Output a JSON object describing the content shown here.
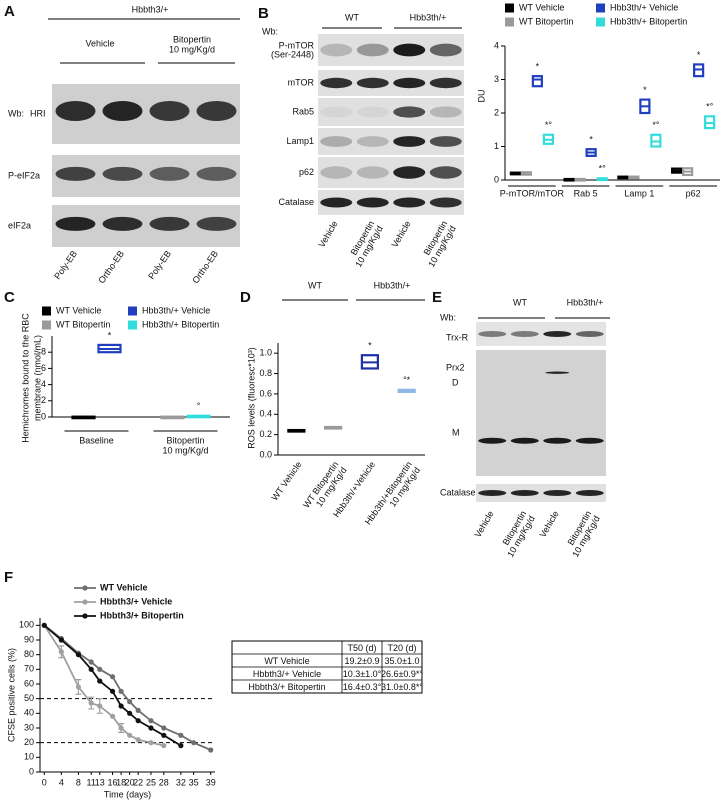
{
  "panel_labels": [
    "A",
    "B",
    "C",
    "D",
    "E",
    "F"
  ],
  "blot_a": {
    "header": "Hbbth3/+",
    "groups": [
      [
        "Vehicle"
      ],
      [
        "Bitopertin",
        "10 mg/Kg/d"
      ]
    ],
    "wb": "Wb:",
    "rows": [
      "HRI",
      "P-eIF2a",
      "eIF2a"
    ],
    "lanes": [
      "Poly-EB",
      "Ortho-EB",
      "Poly-EB",
      "Ortho-EB"
    ]
  },
  "blot_b": {
    "wb": "Wb:",
    "groups": [
      "WT",
      "Hbb3th/+"
    ],
    "rows": [
      [
        "P-mTOR",
        "(Ser-2448)"
      ],
      [
        "mTOR"
      ],
      [
        "Rab5"
      ],
      [
        "Lamp1"
      ],
      [
        "p62"
      ],
      [
        "Catalase"
      ]
    ],
    "lanes": [
      [
        "Vehicle"
      ],
      [
        "Bitopertin",
        "10 mg/Kg/d"
      ],
      [
        "Vehicle"
      ],
      [
        "Bitopertin",
        "10 mg/Kg/d"
      ]
    ]
  },
  "blot_e": {
    "wb": "Wb:",
    "groups": [
      "WT",
      "Hbb3th/+"
    ],
    "rows": [
      "Trx-R",
      "Prx2",
      "Catalase"
    ],
    "prx2_marks": [
      "D",
      "M"
    ],
    "lanes": [
      [
        "Vehicle"
      ],
      [
        "Bitopertin",
        "10 mg/Kg/d"
      ],
      [
        "Vehicle"
      ],
      [
        "Bitopertin",
        "10 mg/Kg/d"
      ]
    ]
  },
  "chart_data": [
    {
      "type": "box",
      "ylabel": "DU",
      "categories": [
        "P-mTOR/mTOR",
        "Rab 5",
        "Lamp 1",
        "p62"
      ],
      "ylim": [
        0,
        4
      ],
      "yticks": [
        0,
        1,
        2,
        3,
        4
      ],
      "series": [
        {
          "name": "WT Vehicle",
          "color": "#000000",
          "q1": [
            0.17,
            0.01,
            0.06,
            0.22
          ],
          "median": [
            0.2,
            0.02,
            0.08,
            0.28
          ],
          "q3": [
            0.22,
            0.03,
            0.1,
            0.34
          ]
        },
        {
          "name": "WT Bitopertin",
          "color": "#9a9a9a",
          "q1": [
            0.16,
            0.01,
            0.06,
            0.15
          ],
          "median": [
            0.2,
            0.02,
            0.08,
            0.25
          ],
          "q3": [
            0.23,
            0.03,
            0.1,
            0.35
          ]
        },
        {
          "name": "Hbb3th/+ Vehicle",
          "color": "#1f3fbf",
          "q1": [
            2.8,
            0.72,
            2.0,
            3.1
          ],
          "median": [
            3.0,
            0.82,
            2.2,
            3.3
          ],
          "q3": [
            3.1,
            0.92,
            2.4,
            3.45
          ],
          "annotations": [
            "*",
            "*",
            "*",
            "*"
          ]
        },
        {
          "name": "Hbb3th/+ Bitopertin",
          "color": "#33dcdc",
          "q1": [
            1.08,
            0.0,
            1.0,
            1.55
          ],
          "median": [
            1.2,
            0.02,
            1.15,
            1.7
          ],
          "q3": [
            1.35,
            0.05,
            1.35,
            1.9
          ],
          "annotations": [
            "*°",
            "*°",
            "*°",
            "*°"
          ]
        }
      ]
    },
    {
      "type": "box",
      "ylabel": [
        "Hemichromes bound to the RBC",
        "membrane (nmol/mL)"
      ],
      "categories": [
        [
          "Baseline"
        ],
        [
          "Bitopertin",
          "10 mg/Kg/d"
        ]
      ],
      "ylim": [
        0,
        10
      ],
      "yticks": [
        0,
        2,
        4,
        6,
        8
      ],
      "series": [
        {
          "name": "WT Vehicle",
          "color": "#000000",
          "q1": [
            0.0,
            null
          ],
          "median": [
            0.02,
            null
          ],
          "q3": [
            0.04,
            null
          ]
        },
        {
          "name": "WT Bitopertin",
          "color": "#9a9a9a",
          "q1": [
            null,
            0.0
          ],
          "median": [
            null,
            0.02
          ],
          "q3": [
            null,
            0.04
          ]
        },
        {
          "name": "Hbb3th/+ Vehicle",
          "color": "#1f3fbf",
          "q1": [
            8.0,
            null
          ],
          "median": [
            8.4,
            null
          ],
          "q3": [
            8.9,
            null
          ],
          "annotations": [
            "*",
            null
          ]
        },
        {
          "name": "Hbb3th/+ Bitopertin",
          "color": "#33dcdc",
          "q1": [
            null,
            0.05
          ],
          "median": [
            null,
            0.1
          ],
          "q3": [
            null,
            0.15
          ],
          "annotations": [
            null,
            "°"
          ]
        }
      ]
    },
    {
      "type": "box",
      "ylabel": "ROS levels (fluoresc*10³)",
      "headers": [
        "WT",
        "Hbb3th/+"
      ],
      "categories": [
        [
          "WT Vehicle"
        ],
        [
          "WT Bitopertin",
          "10 mg/Kg/d"
        ],
        [
          "Hbb3th/+Vehicle"
        ],
        [
          "Hbb3th/+Bitopertin",
          "10 mg/Kg/d"
        ]
      ],
      "ylim": [
        0,
        1.1
      ],
      "yticks": [
        {
          "value": 0,
          "label": "0.0"
        },
        {
          "value": 0.2,
          "label": "0.2"
        },
        {
          "value": 0.4,
          "label": "0.4"
        },
        {
          "value": 0.6,
          "label": "0.6"
        },
        {
          "value": 0.8,
          "label": "0.8"
        },
        {
          "value": 1,
          "label": "1.0"
        }
      ],
      "series": [
        {
          "colors": [
            "#000000",
            "#9a9a9a",
            "#1f2fa8",
            "#8fb8e8"
          ],
          "q1": [
            0.235,
            0.265,
            0.85,
            0.62
          ],
          "median": [
            0.24,
            0.27,
            0.91,
            0.63
          ],
          "q3": [
            0.245,
            0.275,
            0.98,
            0.64
          ],
          "annotations": [
            null,
            null,
            "*",
            "°*"
          ]
        }
      ]
    },
    {
      "type": "line",
      "ylabel": "CFSE positive cells (%)",
      "xlabel": "Time (days)",
      "x": [
        0,
        4,
        8,
        11,
        13,
        16,
        18,
        20,
        22,
        25,
        28,
        32,
        35,
        39
      ],
      "xlim": [
        -1,
        40
      ],
      "xticks": [
        0,
        4,
        8,
        11,
        13,
        16,
        18,
        20,
        22,
        25,
        28,
        32,
        35,
        39
      ],
      "ylim": [
        0,
        105
      ],
      "yticks": [
        0,
        10,
        20,
        30,
        40,
        50,
        60,
        70,
        80,
        90,
        100
      ],
      "hlines": [
        50,
        20
      ],
      "series": [
        {
          "name": "WT Vehicle",
          "color": "#6e6e6e",
          "values": [
            100,
            91,
            81,
            75,
            70,
            65,
            55,
            48,
            42,
            35,
            30,
            25,
            20,
            15
          ]
        },
        {
          "name": "Hbbth3/+ Vehicle",
          "color": "#a0a0a0",
          "values": [
            100,
            82,
            58,
            47,
            45,
            38,
            30,
            25,
            22,
            20,
            18,
            null,
            null,
            null
          ],
          "errors": [
            null,
            4,
            5,
            4,
            5,
            null,
            3,
            null,
            null,
            null,
            null,
            null,
            null,
            null
          ]
        },
        {
          "name": "Hbbth3/+ Bitopertin",
          "color": "#111111",
          "values": [
            100,
            90,
            80,
            70,
            62,
            55,
            45,
            40,
            35,
            30,
            25,
            18,
            null,
            null
          ]
        }
      ]
    }
  ],
  "table_f": {
    "header": [
      "T50 (d)",
      "T20 (d)"
    ],
    "rows": [
      [
        "WT Vehicle",
        "19.2±0.9",
        "35.0±1.0"
      ],
      [
        "Hbbth3/+ Vehicle",
        "10.3±1.0°",
        "26.6±0.9*°"
      ],
      [
        "Hbbth3/+ Bitopertin",
        "16.4±0.3°",
        "31.0±0.8*°"
      ]
    ]
  }
}
